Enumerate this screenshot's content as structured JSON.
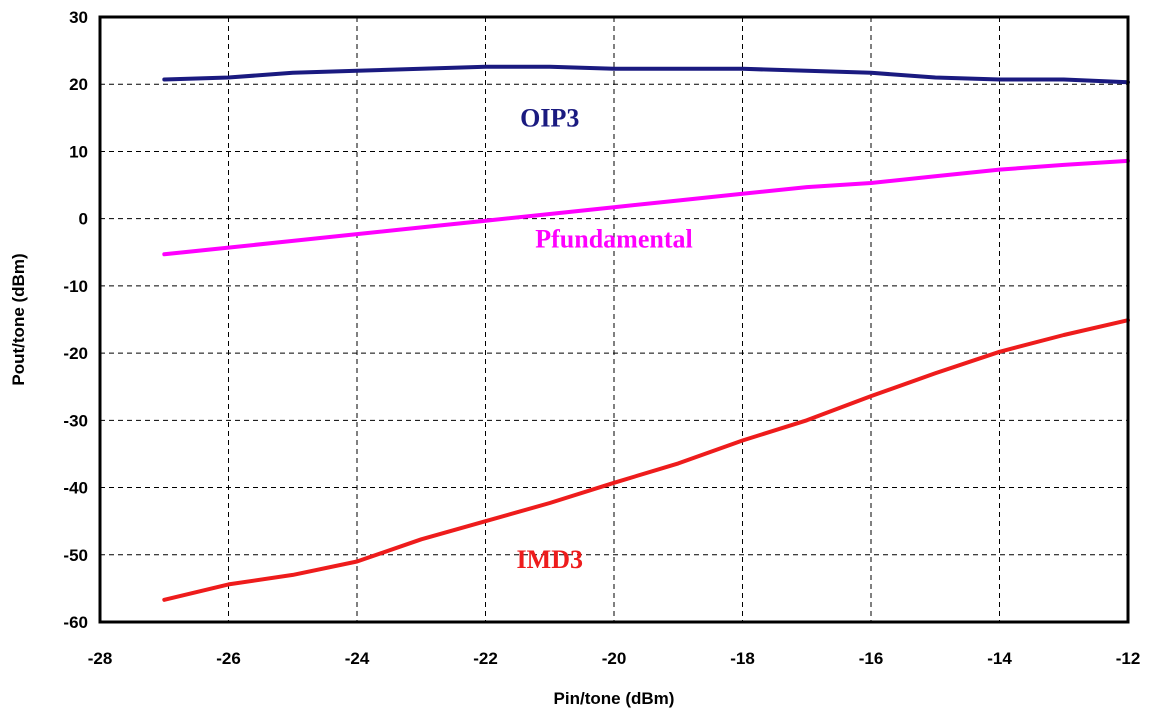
{
  "chart_data": {
    "type": "line",
    "title": "",
    "xlabel": "Pin/tone (dBm)",
    "ylabel": "Pout/tone (dBm)",
    "xlim": [
      -28,
      -12
    ],
    "ylim": [
      -60,
      30
    ],
    "xticks": [
      -28,
      -26,
      -24,
      -22,
      -20,
      -18,
      -16,
      -14,
      -12
    ],
    "yticks": [
      -60,
      -50,
      -40,
      -30,
      -20,
      -10,
      0,
      10,
      20,
      30
    ],
    "grid": true,
    "x": [
      -27,
      -26,
      -25,
      -24,
      -23,
      -22,
      -21,
      -20,
      -19,
      -18,
      -17,
      -16,
      -15,
      -14,
      -13,
      -12
    ],
    "series": [
      {
        "name": "OIP3",
        "color": "#1a1a80",
        "values": [
          20.7,
          21.0,
          21.7,
          22.0,
          22.3,
          22.6,
          22.6,
          22.3,
          22.3,
          22.3,
          22.0,
          21.7,
          21.0,
          20.7,
          20.7,
          20.3
        ]
      },
      {
        "name": "Pfundamental",
        "color": "#ff00ff",
        "values": [
          -5.3,
          -4.3,
          -3.3,
          -2.3,
          -1.3,
          -0.3,
          0.7,
          1.7,
          2.7,
          3.7,
          4.7,
          5.3,
          6.3,
          7.3,
          8.0,
          8.6
        ]
      },
      {
        "name": "IMD3",
        "color": "#ee1c1c",
        "values": [
          -56.7,
          -54.4,
          -53.0,
          -51.0,
          -47.7,
          -45.0,
          -42.3,
          -39.3,
          -36.4,
          -33.0,
          -30.0,
          -26.4,
          -23.0,
          -19.8,
          -17.3,
          -15.1
        ]
      }
    ]
  }
}
